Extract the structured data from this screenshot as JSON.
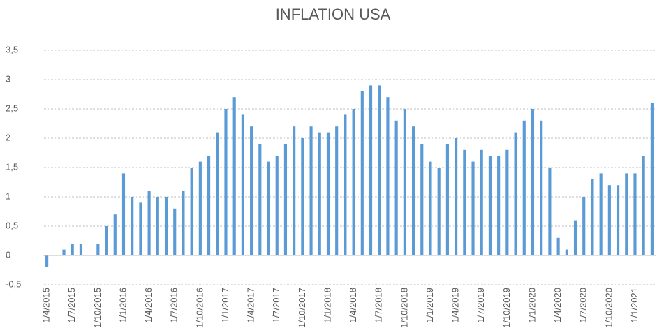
{
  "chart_data": {
    "type": "bar",
    "title": "INFLATION USA",
    "categories": [
      "1/4/2015",
      null,
      null,
      "1/7/2015",
      null,
      null,
      "1/10/2015",
      null,
      null,
      "1/1/2016",
      null,
      null,
      "1/4/2016",
      null,
      null,
      "1/7/2016",
      null,
      null,
      "1/10/2016",
      null,
      null,
      "1/1/2017",
      null,
      null,
      "1/4/2017",
      null,
      null,
      "1/7/2017",
      null,
      null,
      "1/10/2017",
      null,
      null,
      "1/1/2018",
      null,
      null,
      "1/4/2018",
      null,
      null,
      "1/7/2018",
      null,
      null,
      "1/10/2018",
      null,
      null,
      "1/1/2019",
      null,
      null,
      "1/4/2019",
      null,
      null,
      "1/7/2019",
      null,
      null,
      "1/10/2019",
      null,
      null,
      "1/1/2020",
      null,
      null,
      "1/4/2020",
      null,
      null,
      "1/7/2020",
      null,
      null,
      "1/10/2020",
      null,
      null,
      "1/1/2021",
      null,
      null
    ],
    "values": [
      -0.2,
      0,
      0.1,
      0.2,
      0.2,
      0,
      0.2,
      0.5,
      0.7,
      1.4,
      1.0,
      0.9,
      1.1,
      1.0,
      1.0,
      0.8,
      1.1,
      1.5,
      1.6,
      1.7,
      2.1,
      2.5,
      2.7,
      2.4,
      2.2,
      1.9,
      1.6,
      1.7,
      1.9,
      2.2,
      2.0,
      2.2,
      2.1,
      2.1,
      2.2,
      2.4,
      2.5,
      2.8,
      2.9,
      2.9,
      2.7,
      2.3,
      2.5,
      2.2,
      1.9,
      1.6,
      1.5,
      1.9,
      2.0,
      1.8,
      1.6,
      1.8,
      1.7,
      1.7,
      1.8,
      2.1,
      2.3,
      2.5,
      2.3,
      1.5,
      0.3,
      0.1,
      0.6,
      1.0,
      1.3,
      1.4,
      1.2,
      1.2,
      1.4,
      1.4,
      1.7,
      2.6
    ],
    "color": "#5b9bd5",
    "ylim": [
      -0.5,
      3.5
    ],
    "yticks": [
      {
        "value": -0.5,
        "label": "-0,5"
      },
      0,
      {
        "value": 0.5,
        "label": "0,5"
      },
      1,
      {
        "value": 1.5,
        "label": "1,5"
      },
      2,
      {
        "value": 2.5,
        "label": "2,5"
      },
      3,
      {
        "value": 3.5,
        "label": "3,5"
      }
    ],
    "grid": true
  }
}
